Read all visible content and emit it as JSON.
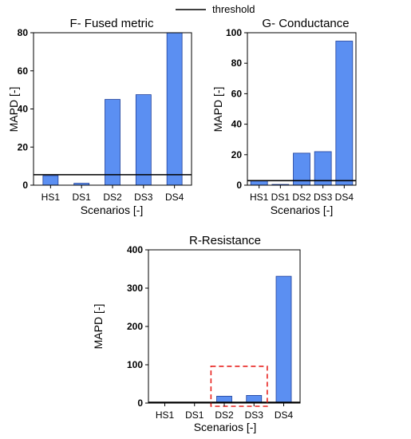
{
  "legend": {
    "label": "threshold"
  },
  "colors": {
    "bar": "#5b8ff2",
    "bar_edge": "#1f3f99",
    "threshold": "#000000",
    "highlight": "#e8221e"
  },
  "chart_data": [
    {
      "type": "bar",
      "title": "F- Fused metric",
      "xlabel": "Scenarios [-]",
      "ylabel": "MAPD [-]",
      "categories": [
        "HS1",
        "DS1",
        "DS2",
        "DS3",
        "DS4"
      ],
      "values": [
        5,
        1,
        45,
        47.5,
        80
      ],
      "ylim": [
        0,
        80
      ],
      "yticks": [
        "0",
        "20",
        "40",
        "60",
        "80"
      ],
      "threshold": 5.5,
      "grid": false,
      "legend_position": "top-center"
    },
    {
      "type": "bar",
      "title": "G- Conductance",
      "xlabel": "Scenarios [-]",
      "ylabel": "MAPD [-]",
      "categories": [
        "HS1",
        "DS1",
        "DS2",
        "DS3",
        "DS4"
      ],
      "values": [
        3,
        0.5,
        21,
        22,
        94.5
      ],
      "ylim": [
        0,
        100
      ],
      "yticks": [
        "0",
        "20",
        "40",
        "60",
        "80",
        "100"
      ],
      "threshold": 3,
      "grid": false
    },
    {
      "type": "bar",
      "title": "R-Resistance",
      "xlabel": "Scenarios [-]",
      "ylabel": "MAPD [-]",
      "categories": [
        "HS1",
        "DS1",
        "DS2",
        "DS3",
        "DS4"
      ],
      "values": [
        2,
        2,
        18,
        20,
        331
      ],
      "ylim": [
        0,
        400
      ],
      "yticks": [
        "0",
        "100",
        "200",
        "300",
        "400"
      ],
      "threshold": 2,
      "grid": false,
      "highlight_categories": [
        "DS2",
        "DS3"
      ]
    }
  ]
}
